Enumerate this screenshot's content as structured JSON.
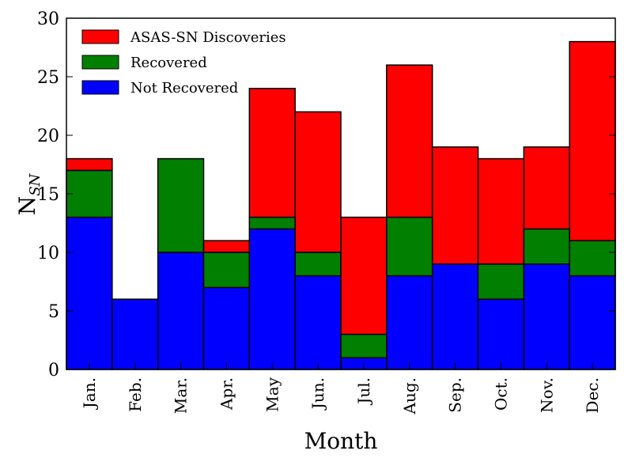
{
  "chart_data": {
    "type": "bar",
    "stacked": true,
    "title": "",
    "xlabel": "Month",
    "ylabel_main": "N",
    "ylabel_sub": "SN",
    "categories": [
      "Jan.",
      "Feb.",
      "Mar.",
      "Apr.",
      "May",
      "Jun.",
      "Jul.",
      "Aug.",
      "Sep.",
      "Oct.",
      "Nov.",
      "Dec."
    ],
    "series": [
      {
        "name": "Not Recovered",
        "color": "#0000ff",
        "values": [
          13,
          6,
          10,
          7,
          12,
          8,
          1,
          8,
          9,
          6,
          9,
          8
        ]
      },
      {
        "name": "Recovered",
        "color": "#007f00",
        "values": [
          4,
          0,
          8,
          3,
          1,
          2,
          2,
          5,
          0,
          3,
          3,
          3
        ]
      },
      {
        "name": "ASAS-SN Discoveries",
        "color": "#ff0000",
        "values": [
          1,
          0,
          0,
          1,
          11,
          12,
          10,
          13,
          10,
          9,
          7,
          17
        ]
      }
    ],
    "legend_order": [
      "ASAS-SN Discoveries",
      "Recovered",
      "Not Recovered"
    ],
    "legend_position": "top-left",
    "ylim": [
      0,
      30
    ],
    "yticks": [
      0,
      5,
      10,
      15,
      20,
      25,
      30
    ],
    "grid": false
  }
}
